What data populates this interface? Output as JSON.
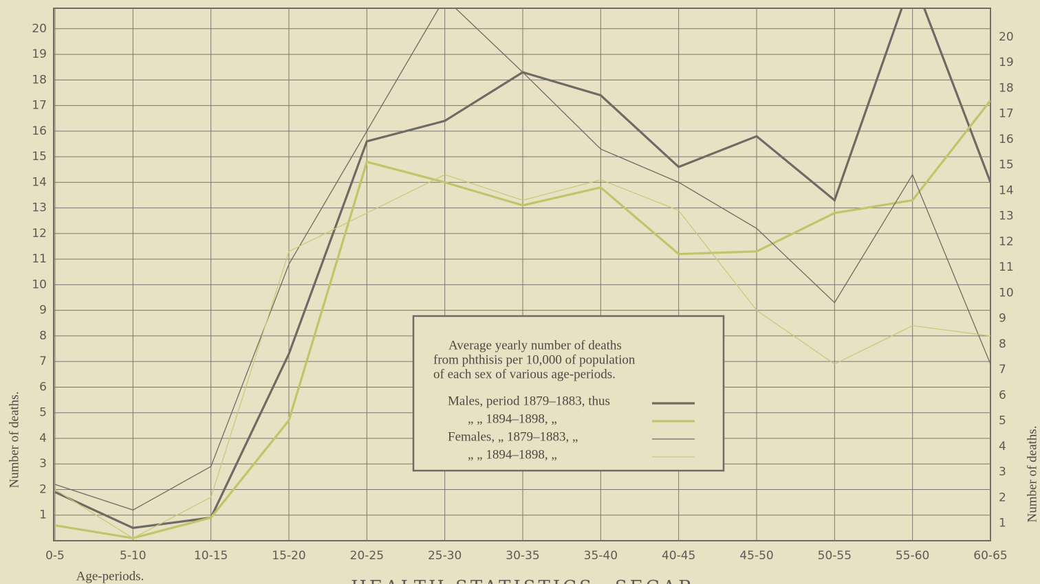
{
  "chart_data": {
    "type": "line",
    "footer": "HEALTH STATISTICS—SEGAR",
    "note": [
      "Average yearly number of deaths",
      "from phthisis per 10,000 of population",
      "of each sex of various age-periods."
    ],
    "ylabel": "Number of deaths.",
    "xlabel": "Age-periods.",
    "categories": [
      "0-5",
      "5-10",
      "10-15",
      "15-20",
      "20-25",
      "25-30",
      "30-35",
      "35-40",
      "40-45",
      "45-50",
      "50-55",
      "55-60",
      "60-65"
    ],
    "series": [
      {
        "name": "Males, period 1879–1883, thus",
        "color": "#6e6a64",
        "width": 3.2,
        "values": [
          1.9,
          0.5,
          0.9,
          7.3,
          15.6,
          16.4,
          18.3,
          17.4,
          14.6,
          15.8,
          13.3,
          22.0,
          14.0
        ]
      },
      {
        "name": "„ „ 1894–1898, „",
        "color": "#c2c46a",
        "width": 3.2,
        "values": [
          0.6,
          0.1,
          0.9,
          4.7,
          14.8,
          14.0,
          13.1,
          13.8,
          11.2,
          11.3,
          12.8,
          13.3,
          17.2
        ]
      },
      {
        "name": "Females, „ 1879–1883, „",
        "color": "#6e6a64",
        "width": 1.3,
        "values": [
          2.2,
          1.2,
          2.9,
          10.8,
          16.0,
          21.2,
          18.3,
          15.3,
          14.0,
          12.2,
          9.3,
          14.3,
          6.9
        ]
      },
      {
        "name": "„ „ 1894–1898, „",
        "color": "#c8ca7a",
        "width": 1.3,
        "values": [
          2.0,
          0.1,
          1.7,
          11.3,
          12.8,
          14.3,
          13.3,
          14.1,
          12.9,
          9.0,
          6.9,
          8.4,
          8.0
        ]
      }
    ],
    "ylim": [
      0,
      20.8
    ],
    "yticks": [
      1,
      2,
      3,
      4,
      5,
      6,
      7,
      8,
      9,
      10,
      11,
      12,
      13,
      14,
      15,
      16,
      17,
      18,
      19,
      20
    ],
    "grid": true
  }
}
